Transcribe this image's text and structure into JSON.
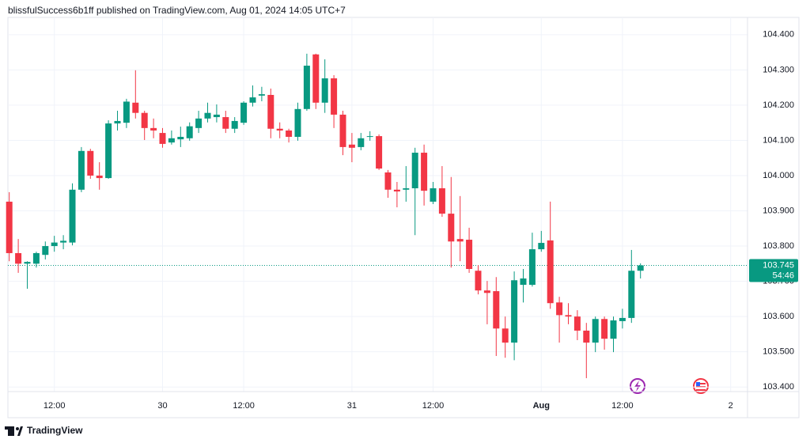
{
  "header": "blissfulSuccess6b1ff published on TradingView.com, Aug 01, 2024 14:05 UTC+7",
  "footer": "TradingView",
  "chart_data": {
    "type": "candlestick",
    "categories": [
      null,
      null,
      null,
      null,
      null,
      "12:00",
      null,
      null,
      null,
      null,
      null,
      null,
      null,
      null,
      null,
      null,
      null,
      "30",
      null,
      null,
      null,
      null,
      null,
      null,
      null,
      null,
      "12:00",
      null,
      null,
      null,
      null,
      null,
      null,
      null,
      null,
      null,
      null,
      null,
      "31",
      null,
      null,
      null,
      null,
      null,
      null,
      null,
      null,
      "12:00",
      null,
      null,
      null,
      null,
      null,
      null,
      null,
      null,
      null,
      null,
      null,
      "Aug",
      null,
      null,
      null,
      null,
      null,
      null,
      null,
      null,
      "12:00",
      null,
      null,
      null,
      null,
      null,
      null,
      null,
      null,
      null,
      null,
      null,
      "2",
      null
    ],
    "open": [
      103.926,
      103.78,
      103.75,
      103.75,
      103.775,
      103.8,
      103.81,
      103.81,
      103.96,
      104.07,
      104.0,
      103.993,
      104.148,
      104.15,
      104.207,
      104.178,
      104.135,
      104.121,
      104.094,
      104.103,
      104.106,
      104.135,
      104.162,
      104.166,
      104.166,
      104.133,
      104.15,
      104.207,
      104.227,
      104.229,
      104.133,
      104.128,
      104.11,
      104.189,
      104.344,
      104.207,
      104.276,
      104.173,
      104.088,
      104.081,
      104.11,
      104.112,
      104.009,
      103.96,
      103.96,
      103.964,
      104.065,
      103.926,
      103.964,
      103.892,
      103.82,
      103.818,
      103.73,
      103.674,
      103.672,
      103.566,
      103.526,
      103.69,
      103.69,
      103.791,
      103.816,
      103.64,
      103.604,
      103.6,
      103.56,
      103.526,
      103.593,
      103.537,
      103.587,
      103.596,
      103.73,
      null,
      null,
      null,
      null,
      null,
      null,
      null,
      null,
      null,
      null,
      null
    ],
    "high": [
      103.953,
      103.82,
      103.757,
      103.784,
      103.813,
      103.829,
      103.831,
      103.978,
      104.081,
      104.076,
      104.038,
      104.157,
      104.184,
      104.218,
      104.299,
      104.184,
      104.162,
      104.135,
      104.128,
      104.139,
      104.151,
      104.184,
      104.207,
      104.202,
      104.184,
      104.166,
      104.211,
      104.256,
      104.252,
      104.247,
      104.151,
      104.133,
      104.207,
      104.346,
      104.346,
      104.33,
      104.285,
      104.184,
      104.121,
      104.121,
      104.126,
      104.117,
      104.016,
      103.982,
      104.027,
      104.079,
      104.088,
      103.982,
      104.027,
      103.996,
      103.942,
      103.852,
      103.746,
      103.701,
      103.712,
      103.6,
      103.728,
      103.735,
      103.838,
      103.843,
      103.926,
      103.656,
      103.638,
      103.618,
      103.582,
      103.6,
      103.6,
      103.6,
      103.622,
      103.789,
      103.751,
      null,
      null,
      null,
      null,
      null,
      null,
      null,
      null,
      null,
      null,
      null
    ],
    "low": [
      103.757,
      103.724,
      103.679,
      103.739,
      103.762,
      103.784,
      103.791,
      103.802,
      103.953,
      103.991,
      103.96,
      103.991,
      104.128,
      104.135,
      104.162,
      104.101,
      104.106,
      104.079,
      104.088,
      104.081,
      104.099,
      104.121,
      104.151,
      104.151,
      104.121,
      104.121,
      104.144,
      104.196,
      104.211,
      104.106,
      104.106,
      104.094,
      104.099,
      104.184,
      104.189,
      104.178,
      104.135,
      104.058,
      104.038,
      104.072,
      104.099,
      104.016,
      103.937,
      103.91,
      103.926,
      103.831,
      103.915,
      103.919,
      103.883,
      103.739,
      103.757,
      103.724,
      103.663,
      103.578,
      103.488,
      103.483,
      103.476,
      103.64,
      103.685,
      103.784,
      103.622,
      103.526,
      103.578,
      103.533,
      103.425,
      103.499,
      103.506,
      103.499,
      103.566,
      103.582,
      103.708,
      null,
      null,
      null,
      null,
      null,
      null,
      null,
      null,
      null,
      null,
      null
    ],
    "close": [
      103.78,
      103.75,
      103.755,
      103.78,
      103.8,
      103.81,
      103.815,
      103.96,
      104.07,
      104.0,
      103.993,
      104.148,
      104.155,
      104.21,
      104.178,
      104.135,
      104.128,
      104.09,
      104.106,
      104.11,
      104.14,
      104.162,
      104.178,
      104.173,
      104.133,
      104.155,
      104.207,
      104.222,
      104.231,
      104.133,
      104.128,
      104.11,
      104.189,
      104.312,
      104.207,
      104.276,
      104.173,
      104.081,
      104.079,
      104.106,
      104.112,
      104.02,
      103.96,
      103.955,
      103.964,
      104.065,
      103.957,
      103.964,
      103.892,
      103.813,
      103.813,
      103.735,
      103.674,
      103.667,
      103.566,
      103.526,
      103.703,
      103.708,
      103.791,
      103.809,
      103.638,
      103.604,
      103.6,
      103.56,
      103.526,
      103.593,
      103.537,
      103.589,
      103.596,
      103.73,
      103.745,
      null,
      null,
      null,
      null,
      null,
      null,
      null,
      null,
      null,
      null,
      null
    ],
    "up_color": "#089981",
    "down_color": "#f23645",
    "ylim": [
      103.387,
      104.449
    ],
    "yticks": [
      {
        "value": 103.4,
        "label": "103.400"
      },
      {
        "value": 103.5,
        "label": "103.500"
      },
      {
        "value": 103.6,
        "label": "103.600"
      },
      {
        "value": 103.7,
        "label": "103.700"
      },
      {
        "value": 103.8,
        "label": "103.800"
      },
      {
        "value": 103.9,
        "label": "103.900"
      },
      {
        "value": 104.0,
        "label": "104.000"
      },
      {
        "value": 104.1,
        "label": "104.100"
      },
      {
        "value": 104.2,
        "label": "104.200"
      },
      {
        "value": 104.3,
        "label": "104.300"
      },
      {
        "value": 104.4,
        "label": "104.400"
      }
    ],
    "last_price": {
      "value": 103.745,
      "label": "103.745"
    },
    "countdown": "54:46",
    "grid": true
  }
}
